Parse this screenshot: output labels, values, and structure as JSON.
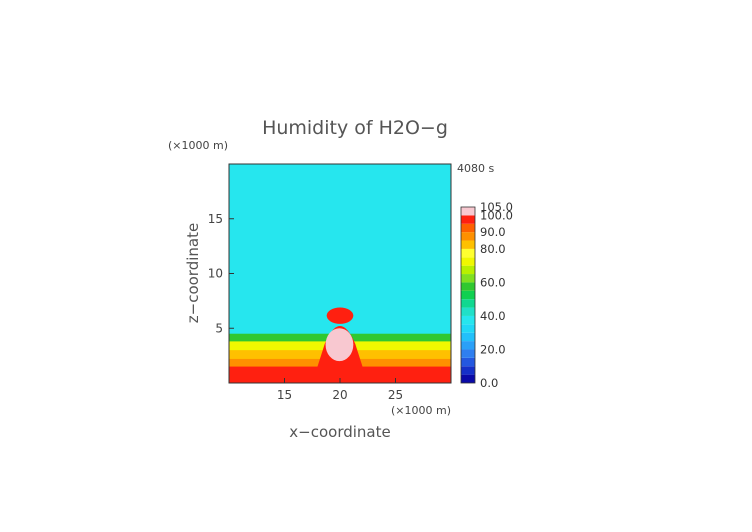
{
  "chart_data": {
    "type": "heatmap",
    "title": "Humidity of H2O−g",
    "xlabel": "x−coordinate",
    "ylabel": "z−coordinate",
    "x_unit": "(×1000 m)",
    "z_unit": "(×1000 m)",
    "time_label": "4080 s",
    "xlim": [
      10,
      30
    ],
    "zlim": [
      0,
      20
    ],
    "x_ticks": [
      "15",
      "20",
      "25"
    ],
    "z_ticks": [
      "5",
      "10",
      "15"
    ],
    "x_tick_values": [
      15,
      20,
      25
    ],
    "z_tick_values": [
      5,
      10,
      15
    ],
    "grid": false,
    "legend_position": "right",
    "colorbar": {
      "range": [
        0,
        105
      ],
      "labels": [
        "105.0",
        "100.0",
        "90.0",
        "80.0",
        "60.0",
        "40.0",
        "20.0",
        "0.0"
      ],
      "label_values": [
        105,
        100,
        90,
        80,
        60,
        40,
        20,
        0
      ],
      "levels": [
        {
          "lo": 0,
          "hi": 5,
          "color": "#0a0aa8"
        },
        {
          "lo": 5,
          "hi": 10,
          "color": "#1530c8"
        },
        {
          "lo": 10,
          "hi": 15,
          "color": "#2458e0"
        },
        {
          "lo": 15,
          "hi": 20,
          "color": "#2f7ff0"
        },
        {
          "lo": 20,
          "hi": 25,
          "color": "#2aa0f8"
        },
        {
          "lo": 25,
          "hi": 30,
          "color": "#22c0fa"
        },
        {
          "lo": 30,
          "hi": 35,
          "color": "#20d8f6"
        },
        {
          "lo": 35,
          "hi": 40,
          "color": "#26e6ee"
        },
        {
          "lo": 40,
          "hi": 45,
          "color": "#20e0c8"
        },
        {
          "lo": 45,
          "hi": 50,
          "color": "#10d890"
        },
        {
          "lo": 50,
          "hi": 55,
          "color": "#10d050"
        },
        {
          "lo": 55,
          "hi": 60,
          "color": "#30c830"
        },
        {
          "lo": 60,
          "hi": 65,
          "color": "#80e020"
        },
        {
          "lo": 65,
          "hi": 70,
          "color": "#b8f000"
        },
        {
          "lo": 70,
          "hi": 75,
          "color": "#f0f800"
        },
        {
          "lo": 75,
          "hi": 80,
          "color": "#ffff30"
        },
        {
          "lo": 80,
          "hi": 85,
          "color": "#ffc000"
        },
        {
          "lo": 85,
          "hi": 90,
          "color": "#ff9000"
        },
        {
          "lo": 90,
          "hi": 95,
          "color": "#ff6000"
        },
        {
          "lo": 95,
          "hi": 100,
          "color": "#ff2010"
        },
        {
          "lo": 100,
          "hi": 105,
          "color": "#f8c8d0"
        }
      ]
    },
    "field_regions": [
      {
        "kind": "background",
        "value": 37
      },
      {
        "kind": "layer",
        "x": [
          10,
          30
        ],
        "z": [
          0,
          4.5
        ],
        "value": 55
      },
      {
        "kind": "layer",
        "x": [
          10,
          30
        ],
        "z": [
          0,
          3.8
        ],
        "value": 70
      },
      {
        "kind": "layer",
        "x": [
          10,
          30
        ],
        "z": [
          0,
          3.0
        ],
        "value": 82
      },
      {
        "kind": "layer",
        "x": [
          10,
          30
        ],
        "z": [
          0,
          2.2
        ],
        "value": 88
      },
      {
        "kind": "layer",
        "x": [
          10,
          30
        ],
        "z": [
          0,
          1.5
        ],
        "value": 97
      },
      {
        "kind": "plume",
        "x": [
          17.5,
          22.5
        ],
        "z": [
          0,
          6.5
        ],
        "value": 97
      },
      {
        "kind": "plume_core",
        "x": [
          18.7,
          21.2
        ],
        "z": [
          2.0,
          5.0
        ],
        "value": 102
      },
      {
        "kind": "cap",
        "x": [
          18.8,
          21.2
        ],
        "z": [
          5.4,
          6.9
        ],
        "value": 97
      }
    ]
  }
}
